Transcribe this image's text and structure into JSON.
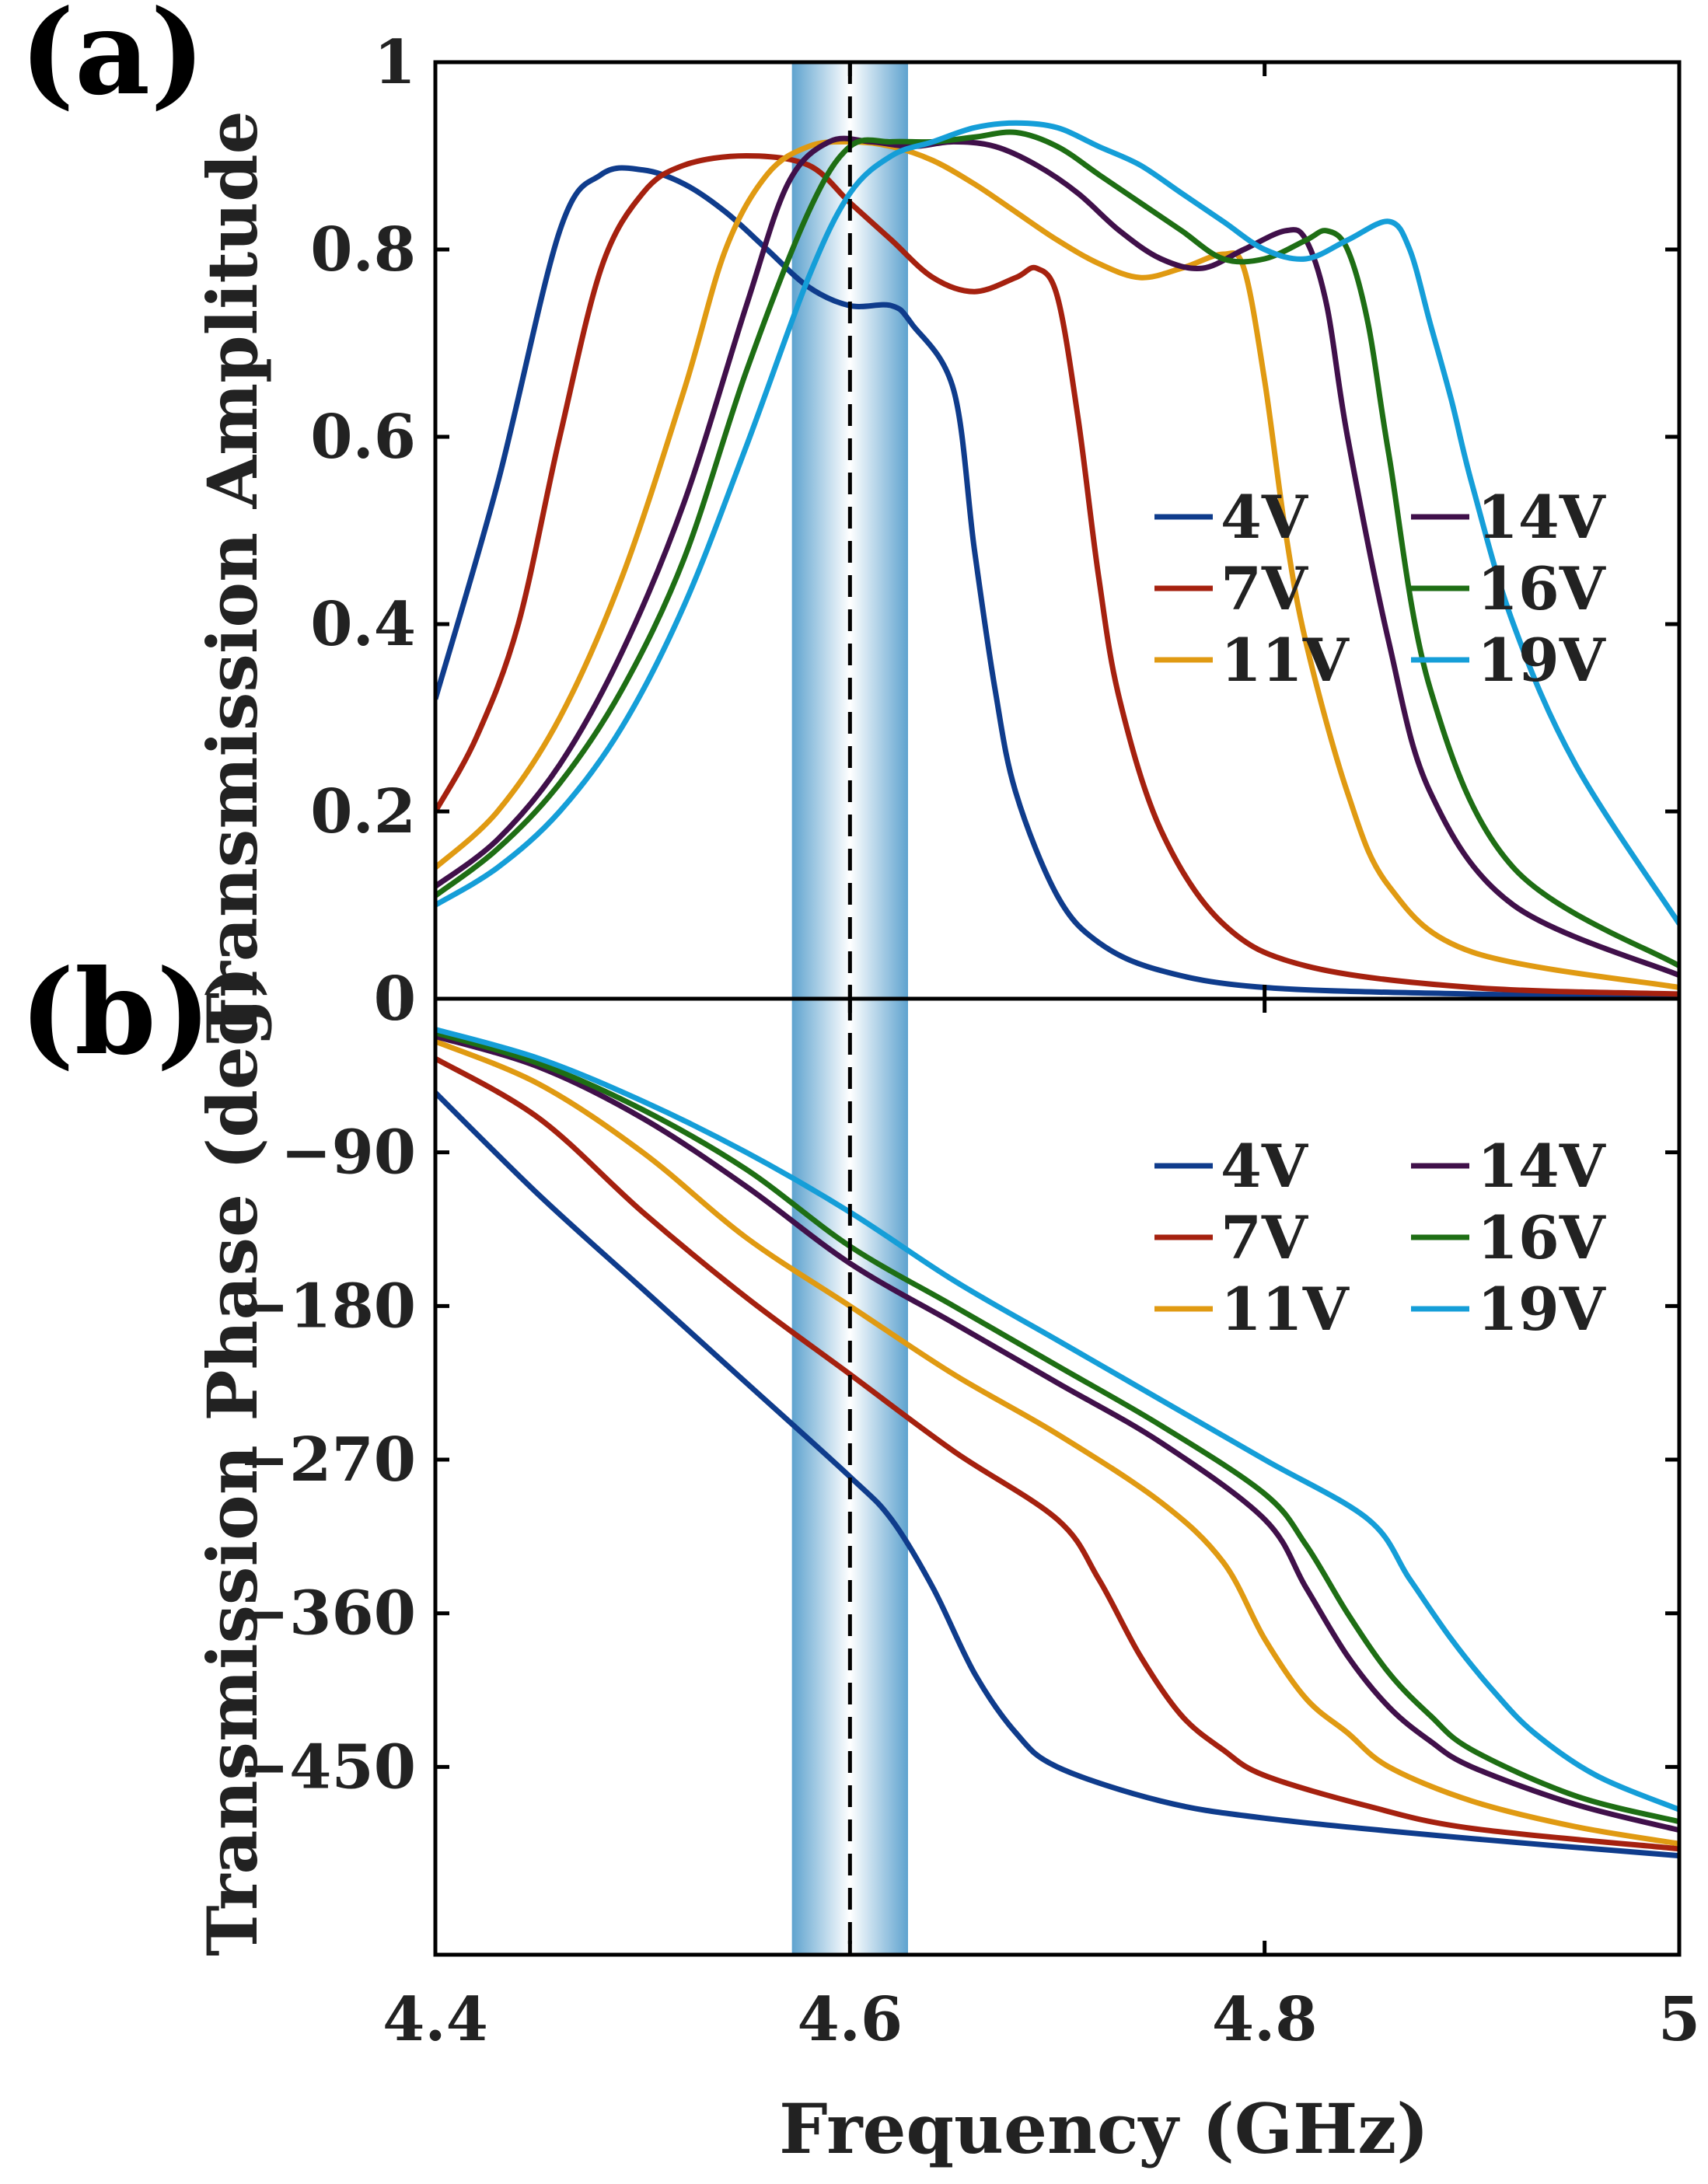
{
  "panel_labels": [
    "(a)",
    "(b)"
  ],
  "colors": {
    "4V": "#0f3c8c",
    "7V": "#a5210f",
    "11V": "#e09a12",
    "14V": "#40104a",
    "16V": "#1e6e14",
    "19V": "#159ed8",
    "band_center": "#ffffff",
    "band_edge": "#5fa3cf"
  },
  "chart_data": [
    {
      "type": "line",
      "panel": "(a)",
      "xlabel": "Frequency (GHz)",
      "ylabel": "Transmission Amplitude",
      "xlim": [
        4.4,
        5.0
      ],
      "ylim": [
        0,
        1
      ],
      "xticks": [
        "4.4",
        "4.6",
        "4.8",
        "5"
      ],
      "xtick_values": [
        4.4,
        4.6,
        4.8,
        5.0
      ],
      "yticks": [
        "0",
        "0.2",
        "0.4",
        "0.6",
        "0.8",
        "1"
      ],
      "ytick_values": [
        0,
        0.2,
        0.4,
        0.6,
        0.8,
        1.0
      ],
      "legend_position": "center-right",
      "highlight_band": [
        4.572,
        4.628
      ],
      "dashed_line_x": 4.6,
      "series": [
        {
          "name": "4V",
          "x": [
            4.4,
            4.43,
            4.46,
            4.48,
            4.5,
            4.52,
            4.54,
            4.56,
            4.58,
            4.6,
            4.62,
            4.63,
            4.65,
            4.66,
            4.67,
            4.68,
            4.7,
            4.72,
            4.75,
            4.8,
            4.9,
            5.0
          ],
          "y": [
            0.32,
            0.55,
            0.82,
            0.88,
            0.885,
            0.87,
            0.84,
            0.8,
            0.76,
            0.74,
            0.74,
            0.72,
            0.65,
            0.48,
            0.33,
            0.22,
            0.11,
            0.06,
            0.03,
            0.012,
            0.005,
            0.002
          ]
        },
        {
          "name": "7V",
          "x": [
            4.4,
            4.42,
            4.44,
            4.46,
            4.48,
            4.5,
            4.52,
            4.55,
            4.58,
            4.6,
            4.62,
            4.64,
            4.66,
            4.68,
            4.69,
            4.7,
            4.71,
            4.72,
            4.73,
            4.75,
            4.78,
            4.82,
            4.9,
            5.0
          ],
          "y": [
            0.2,
            0.28,
            0.4,
            0.6,
            0.78,
            0.86,
            0.89,
            0.9,
            0.89,
            0.85,
            0.81,
            0.77,
            0.755,
            0.77,
            0.78,
            0.75,
            0.62,
            0.45,
            0.32,
            0.18,
            0.08,
            0.035,
            0.012,
            0.005
          ]
        },
        {
          "name": "11V",
          "x": [
            4.4,
            4.43,
            4.46,
            4.49,
            4.52,
            4.54,
            4.56,
            4.58,
            4.6,
            4.62,
            4.64,
            4.66,
            4.68,
            4.7,
            4.72,
            4.74,
            4.76,
            4.78,
            4.79,
            4.8,
            4.81,
            4.82,
            4.84,
            4.86,
            4.9,
            5.0
          ],
          "y": [
            0.14,
            0.2,
            0.3,
            0.45,
            0.65,
            0.8,
            0.88,
            0.91,
            0.915,
            0.91,
            0.895,
            0.87,
            0.84,
            0.81,
            0.785,
            0.77,
            0.78,
            0.795,
            0.78,
            0.66,
            0.5,
            0.38,
            0.22,
            0.12,
            0.05,
            0.012
          ]
        },
        {
          "name": "14V",
          "x": [
            4.4,
            4.43,
            4.46,
            4.49,
            4.52,
            4.55,
            4.57,
            4.59,
            4.61,
            4.63,
            4.65,
            4.67,
            4.69,
            4.71,
            4.73,
            4.75,
            4.77,
            4.79,
            4.81,
            4.82,
            4.83,
            4.84,
            4.86,
            4.88,
            4.92,
            5.0
          ],
          "y": [
            0.12,
            0.17,
            0.25,
            0.37,
            0.53,
            0.74,
            0.87,
            0.915,
            0.915,
            0.91,
            0.915,
            0.91,
            0.89,
            0.86,
            0.82,
            0.79,
            0.78,
            0.8,
            0.82,
            0.81,
            0.74,
            0.6,
            0.38,
            0.22,
            0.1,
            0.025
          ]
        },
        {
          "name": "16V",
          "x": [
            4.4,
            4.43,
            4.46,
            4.49,
            4.52,
            4.55,
            4.58,
            4.6,
            4.62,
            4.64,
            4.66,
            4.68,
            4.7,
            4.72,
            4.74,
            4.76,
            4.78,
            4.8,
            4.82,
            4.83,
            4.84,
            4.85,
            4.86,
            4.88,
            4.92,
            5.0
          ],
          "y": [
            0.11,
            0.16,
            0.23,
            0.33,
            0.47,
            0.67,
            0.84,
            0.91,
            0.915,
            0.915,
            0.92,
            0.925,
            0.91,
            0.88,
            0.85,
            0.82,
            0.79,
            0.79,
            0.81,
            0.82,
            0.8,
            0.72,
            0.58,
            0.33,
            0.14,
            0.035
          ]
        },
        {
          "name": "19V",
          "x": [
            4.4,
            4.43,
            4.46,
            4.49,
            4.52,
            4.55,
            4.58,
            4.6,
            4.62,
            4.64,
            4.66,
            4.68,
            4.7,
            4.72,
            4.74,
            4.76,
            4.78,
            4.8,
            4.82,
            4.84,
            4.86,
            4.87,
            4.88,
            4.89,
            4.9,
            4.92,
            4.95,
            5.0
          ],
          "y": [
            0.1,
            0.14,
            0.2,
            0.29,
            0.42,
            0.59,
            0.77,
            0.86,
            0.9,
            0.915,
            0.93,
            0.935,
            0.93,
            0.91,
            0.89,
            0.86,
            0.83,
            0.8,
            0.79,
            0.81,
            0.83,
            0.8,
            0.72,
            0.64,
            0.55,
            0.4,
            0.25,
            0.08
          ]
        }
      ]
    },
    {
      "type": "line",
      "panel": "(b)",
      "xlabel": "Frequency (GHz)",
      "ylabel": "Transmission Phase (deg)",
      "xlim": [
        4.4,
        5.0
      ],
      "ylim": [
        -560,
        0
      ],
      "xticks": [
        "4.4",
        "4.6",
        "4.8",
        "5"
      ],
      "xtick_values": [
        4.4,
        4.6,
        4.8,
        5.0
      ],
      "yticks": [
        "0",
        "−90",
        "−180",
        "−270",
        "−360",
        "−450"
      ],
      "ytick_values": [
        0,
        -90,
        -180,
        -270,
        -360,
        -450
      ],
      "legend_position": "top-right",
      "highlight_band": [
        4.572,
        4.628
      ],
      "dashed_line_x": 4.6,
      "series": [
        {
          "name": "4V",
          "x": [
            4.4,
            4.45,
            4.5,
            4.55,
            4.6,
            4.62,
            4.64,
            4.66,
            4.68,
            4.7,
            4.75,
            4.8,
            4.9,
            5.0
          ],
          "y": [
            -55,
            -115,
            -170,
            -225,
            -280,
            -305,
            -345,
            -395,
            -430,
            -450,
            -470,
            -480,
            -492,
            -502
          ]
        },
        {
          "name": "7V",
          "x": [
            4.4,
            4.45,
            4.5,
            4.55,
            4.6,
            4.65,
            4.7,
            4.72,
            4.74,
            4.76,
            4.78,
            4.8,
            4.85,
            4.9,
            5.0
          ],
          "y": [
            -35,
            -70,
            -125,
            -175,
            -220,
            -265,
            -305,
            -340,
            -385,
            -420,
            -440,
            -455,
            -473,
            -486,
            -498
          ]
        },
        {
          "name": "11V",
          "x": [
            4.4,
            4.45,
            4.5,
            4.55,
            4.6,
            4.65,
            4.7,
            4.75,
            4.78,
            4.8,
            4.82,
            4.84,
            4.86,
            4.9,
            4.95,
            5.0
          ],
          "y": [
            -25,
            -50,
            -90,
            -140,
            -180,
            -220,
            -255,
            -295,
            -330,
            -375,
            -410,
            -430,
            -450,
            -470,
            -485,
            -495
          ]
        },
        {
          "name": "14V",
          "x": [
            4.4,
            4.45,
            4.5,
            4.55,
            4.6,
            4.65,
            4.7,
            4.75,
            4.8,
            4.82,
            4.84,
            4.86,
            4.88,
            4.9,
            4.95,
            5.0
          ],
          "y": [
            -22,
            -40,
            -70,
            -110,
            -155,
            -190,
            -225,
            -260,
            -305,
            -345,
            -385,
            -415,
            -435,
            -450,
            -472,
            -487
          ]
        },
        {
          "name": "16V",
          "x": [
            4.4,
            4.45,
            4.5,
            4.55,
            4.6,
            4.65,
            4.7,
            4.75,
            4.8,
            4.82,
            4.84,
            4.86,
            4.88,
            4.9,
            4.95,
            5.0
          ],
          "y": [
            -20,
            -38,
            -65,
            -100,
            -145,
            -180,
            -215,
            -250,
            -290,
            -320,
            -360,
            -395,
            -420,
            -440,
            -467,
            -482
          ]
        },
        {
          "name": "19V",
          "x": [
            4.4,
            4.45,
            4.5,
            4.55,
            4.6,
            4.65,
            4.7,
            4.75,
            4.8,
            4.85,
            4.87,
            4.89,
            4.91,
            4.93,
            4.96,
            5.0
          ],
          "y": [
            -18,
            -35,
            -60,
            -90,
            -125,
            -165,
            -200,
            -235,
            -270,
            -305,
            -340,
            -375,
            -405,
            -430,
            -455,
            -475
          ]
        }
      ]
    }
  ]
}
